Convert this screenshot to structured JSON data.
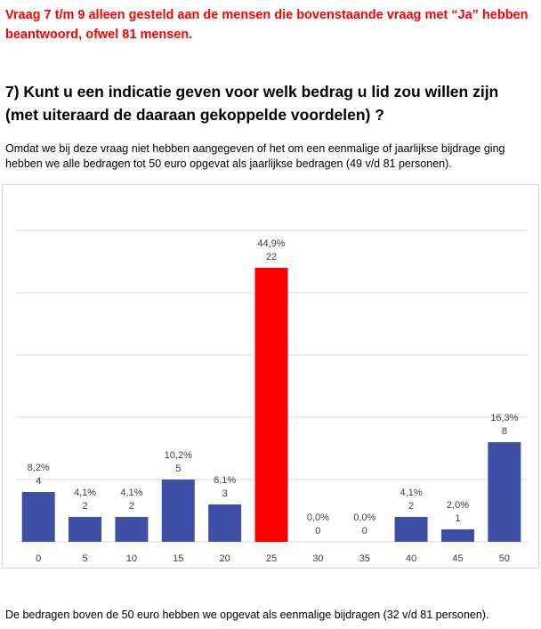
{
  "intro_text": "Vraag 7 t/m 9 alleen gesteld aan de mensen die bovenstaande vraag met “Ja” hebben beantwoord, ofwel 81 mensen.",
  "question_heading": "7) Kunt u een indicatie geven voor welk bedrag u lid zou willen zijn (met uiteraard de daaraan gekoppelde voordelen) ?",
  "intro_paragraph": "Omdat we bij deze vraag niet hebben aangegeven of het om een eenmalige of jaarlijkse bijdrage ging hebben we alle bedragen tot 50 euro opgevat als jaarlijkse bedragen (49 v/d 81 personen).",
  "footer_paragraph": "De bedragen boven de 50 euro hebben we opgevat als eenmalige bijdragen (32 v/d 81 personen).",
  "colors": {
    "intro": "#ff0000",
    "bar_default": "#3f4ea6",
    "bar_highlight": "#ff0000",
    "gridline": "#d9d9d9",
    "label": "#404040"
  },
  "chart_data": {
    "type": "bar",
    "categories": [
      "0",
      "5",
      "10",
      "15",
      "20",
      "25",
      "30",
      "35",
      "40",
      "45",
      "50"
    ],
    "values": [
      4,
      2,
      2,
      5,
      3,
      22,
      0,
      0,
      2,
      1,
      8
    ],
    "percent_labels": [
      "8,2%",
      "4,1%",
      "4,1%",
      "10,2%",
      "6,1%",
      "44,9%",
      "0,0%",
      "0,0%",
      "4,1%",
      "2,0%",
      "16,3%"
    ],
    "highlight_index": 5,
    "ylim": [
      0,
      25
    ],
    "y_gridlines": [
      0,
      5,
      10,
      15,
      20,
      25
    ],
    "grid": true,
    "y_axis_labels_shown": false,
    "legend": "none",
    "title": "",
    "xlabel": "",
    "ylabel": ""
  }
}
